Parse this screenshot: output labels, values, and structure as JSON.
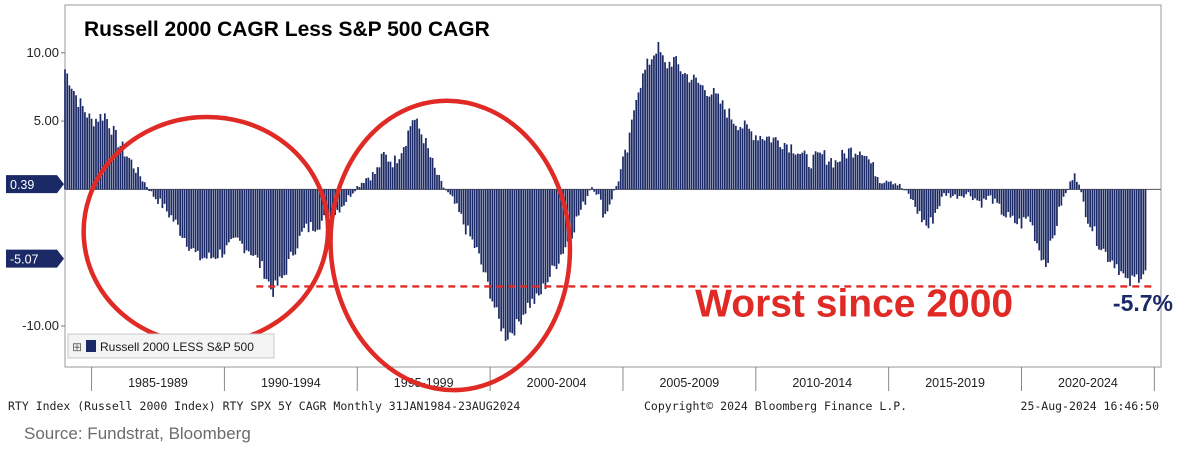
{
  "chart_data": {
    "type": "bar",
    "title": "Russell 2000 CAGR Less S&P 500 CAGR",
    "series": [
      {
        "name": "Russell 2000 LESS S&P 500",
        "color": "#1b2a66"
      }
    ],
    "xlim": [
      1984.0,
      2025.25
    ],
    "ylim": [
      -13.0,
      13.5
    ],
    "y_ticks": [
      "10.00",
      "5.00",
      "-10.00"
    ],
    "x_period_labels": [
      "1985-1989",
      "1990-1994",
      "1995-1999",
      "2000-2004",
      "2005-2009",
      "2010-2014",
      "2015-2019",
      "2020-2024"
    ],
    "value_badges": [
      {
        "label": "0.39",
        "value": 0.39
      },
      {
        "label": "-5.07",
        "value": -5.07
      }
    ],
    "reference_line": {
      "value": -7.1,
      "from_x": 1991.2,
      "to_x": 2025.0,
      "color": "#e02a25",
      "style": "dashed"
    },
    "callout": {
      "text": "Worst since 2000",
      "color": "#e02a25",
      "anchor_x": 2013.7,
      "anchor_y": -9.3
    },
    "end_label": {
      "text": "-5.7%",
      "color": "#1b2a66"
    },
    "circles": [
      {
        "cx": 1989.3,
        "cy": -3.0,
        "rx": 4.6,
        "ry": 8.3
      },
      {
        "cx": 1998.5,
        "cy": -4.1,
        "rx": 4.5,
        "ry": 10.6
      }
    ],
    "monthly_points": [
      [
        1984.0,
        8.8
      ],
      [
        1984.5,
        6.5
      ],
      [
        1985.0,
        5.0
      ],
      [
        1985.5,
        5.5
      ],
      [
        1986.0,
        3.5
      ],
      [
        1986.5,
        2.0
      ],
      [
        1987.0,
        0.5
      ],
      [
        1987.3,
        -0.4
      ],
      [
        1987.6,
        -1.0
      ],
      [
        1988.0,
        -2.0
      ],
      [
        1988.5,
        -3.5
      ],
      [
        1989.0,
        -5.0
      ],
      [
        1989.5,
        -5.0
      ],
      [
        1990.0,
        -4.5
      ],
      [
        1990.5,
        -3.8
      ],
      [
        1991.0,
        -4.5
      ],
      [
        1991.5,
        -6.0
      ],
      [
        1991.8,
        -7.5
      ],
      [
        1992.2,
        -6.5
      ],
      [
        1992.6,
        -4.5
      ],
      [
        1993.0,
        -3.0
      ],
      [
        1993.5,
        -2.5
      ],
      [
        1994.0,
        -2.0
      ],
      [
        1994.5,
        -1.0
      ],
      [
        1994.9,
        0.0
      ],
      [
        1995.3,
        0.8
      ],
      [
        1995.7,
        1.2
      ],
      [
        1996.0,
        2.5
      ],
      [
        1996.4,
        2.0
      ],
      [
        1996.8,
        3.5
      ],
      [
        1997.1,
        5.3
      ],
      [
        1997.5,
        3.8
      ],
      [
        1997.9,
        1.5
      ],
      [
        1998.2,
        0.3
      ],
      [
        1998.6,
        -0.8
      ],
      [
        1999.0,
        -2.5
      ],
      [
        1999.5,
        -4.5
      ],
      [
        2000.0,
        -7.5
      ],
      [
        2000.3,
        -9.5
      ],
      [
        2000.6,
        -10.8
      ],
      [
        2001.0,
        -10.0
      ],
      [
        2001.4,
        -8.5
      ],
      [
        2001.8,
        -8.0
      ],
      [
        2002.2,
        -6.5
      ],
      [
        2002.6,
        -5.0
      ],
      [
        2003.0,
        -3.5
      ],
      [
        2003.3,
        -2.0
      ],
      [
        2003.6,
        -0.8
      ],
      [
        2003.8,
        0.3
      ],
      [
        2004.1,
        -0.5
      ],
      [
        2004.3,
        -2.0
      ],
      [
        2004.5,
        -1.0
      ],
      [
        2004.8,
        0.5
      ],
      [
        2005.0,
        2.0
      ],
      [
        2005.2,
        3.0
      ],
      [
        2005.5,
        7.0
      ],
      [
        2005.9,
        9.0
      ],
      [
        2006.3,
        10.5
      ],
      [
        2006.6,
        9.0
      ],
      [
        2006.9,
        9.5
      ],
      [
        2007.3,
        8.5
      ],
      [
        2007.7,
        8.0
      ],
      [
        2008.0,
        7.5
      ],
      [
        2008.4,
        7.0
      ],
      [
        2008.8,
        6.0
      ],
      [
        2009.2,
        5.0
      ],
      [
        2009.6,
        4.5
      ],
      [
        2010.0,
        4.0
      ],
      [
        2010.5,
        3.8
      ],
      [
        2011.0,
        3.5
      ],
      [
        2011.5,
        3.0
      ],
      [
        2012.0,
        2.0
      ],
      [
        2012.5,
        2.5
      ],
      [
        2013.0,
        2.0
      ],
      [
        2013.5,
        2.8
      ],
      [
        2014.0,
        3.0
      ],
      [
        2014.3,
        2.0
      ],
      [
        2014.7,
        0.6
      ],
      [
        2015.0,
        0.8
      ],
      [
        2015.4,
        0.3
      ],
      [
        2015.8,
        -0.5
      ],
      [
        2016.2,
        -2.0
      ],
      [
        2016.5,
        -2.8
      ],
      [
        2016.8,
        -1.5
      ],
      [
        2017.1,
        -0.3
      ],
      [
        2017.5,
        -0.5
      ],
      [
        2018.0,
        -0.3
      ],
      [
        2018.5,
        -1.0
      ],
      [
        2018.8,
        -0.5
      ],
      [
        2019.2,
        -1.5
      ],
      [
        2019.6,
        -2.3
      ],
      [
        2020.0,
        -2.5
      ],
      [
        2020.3,
        -2.0
      ],
      [
        2020.6,
        -4.0
      ],
      [
        2020.9,
        -5.5
      ],
      [
        2021.2,
        -3.5
      ],
      [
        2021.5,
        -1.0
      ],
      [
        2021.8,
        0.2
      ],
      [
        2022.0,
        1.5
      ],
      [
        2022.2,
        0.0
      ],
      [
        2022.4,
        -1.5
      ],
      [
        2022.8,
        -3.5
      ],
      [
        2023.2,
        -4.8
      ],
      [
        2023.6,
        -5.5
      ],
      [
        2024.0,
        -7.0
      ],
      [
        2024.3,
        -6.5
      ],
      [
        2024.6,
        -6.0
      ],
      [
        2024.9,
        -5.7
      ]
    ]
  },
  "header_info": {
    "left": "RTY Index (Russell 2000 Index) RTY SPX 5Y CAGR  Monthly 31JAN1984-23AUG2024",
    "center": "Copyright© 2024 Bloomberg Finance L.P.",
    "right": "25-Aug-2024 16:46:50"
  },
  "legend": {
    "expand_icon": "⊞"
  },
  "source": "Source: Fundstrat, Bloomberg"
}
